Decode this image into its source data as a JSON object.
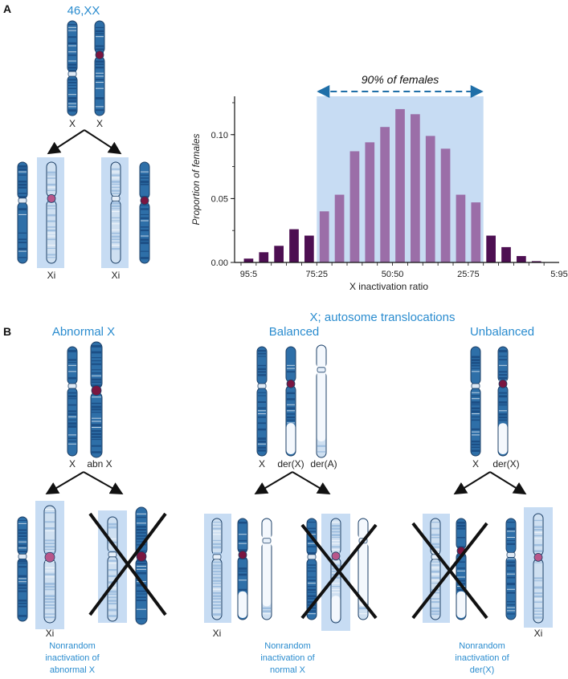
{
  "panel_a": {
    "letter": "A",
    "karyotype": "46,XX",
    "x_labels": [
      "X",
      "X"
    ],
    "xi_labels": [
      "Xi",
      "Xi"
    ]
  },
  "panel_b": {
    "letter": "B",
    "translocations_heading": "X; autosome translocations",
    "abnormal": {
      "heading": "Abnormal X",
      "labels": [
        "X",
        "abn X"
      ],
      "xi_label": "Xi",
      "note": [
        "Nonrandom",
        "inactivation of",
        "abnormal X"
      ]
    },
    "balanced": {
      "heading": "Balanced",
      "labels": [
        "X",
        "der(X)",
        "der(A)"
      ],
      "xi_label": "Xi",
      "note": [
        "Nonrandom",
        "inactivation of",
        "normal X"
      ]
    },
    "unbalanced": {
      "heading": "Unbalanced",
      "labels": [
        "X",
        "der(X)"
      ],
      "xi_label": "Xi",
      "note": [
        "Nonrandom",
        "inactivation of",
        "der(X)"
      ]
    }
  },
  "colors": {
    "chromosome_dark": "#2e6fa8",
    "chromosome_light": "#cfe0f1",
    "highlight": "#c7dcf3",
    "centromere": "#7a1640",
    "bar_dark": "#4d0f52",
    "bar_light": "#9b6ea8",
    "accent_text": "#2a8ccf"
  },
  "chart_data": {
    "type": "bar",
    "annotation": "90% of females",
    "xlabel": "X inactivation ratio",
    "ylabel": "Proportion of females",
    "ylim": [
      0,
      0.13
    ],
    "yticks": [
      "0.00",
      "0.05",
      "0.10"
    ],
    "ytick_values": [
      0,
      0.05,
      0.1
    ],
    "xtick_labels": [
      "95:5",
      "75:25",
      "50:50",
      "25:75",
      "5:95"
    ],
    "xtick_bar_index": [
      0.5,
      5,
      10,
      15,
      21
    ],
    "values": [
      0.003,
      0.008,
      0.013,
      0.026,
      0.021,
      0.04,
      0.053,
      0.087,
      0.094,
      0.106,
      0.12,
      0.116,
      0.099,
      0.089,
      0.053,
      0.047,
      0.021,
      0.012,
      0.005,
      0.001
    ],
    "highlight_range": [
      5,
      15
    ]
  }
}
